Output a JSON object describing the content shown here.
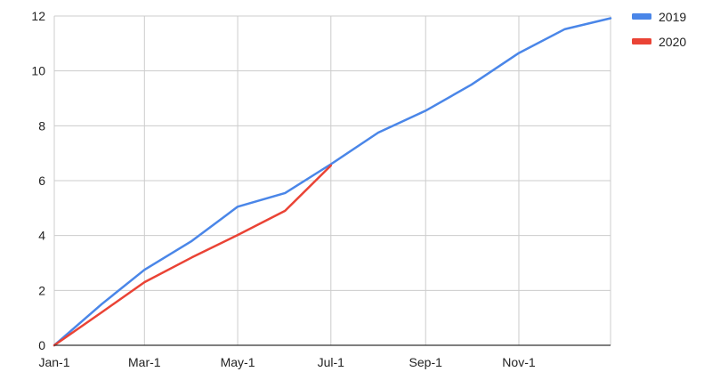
{
  "chart_data": {
    "type": "line",
    "x_ticks": [
      "Jan-1",
      "Mar-1",
      "May-1",
      "Jul-1",
      "Sep-1",
      "Nov-1"
    ],
    "y_ticks": [
      "0",
      "2",
      "4",
      "6",
      "8",
      "10",
      "12"
    ],
    "ylim": [
      0,
      12
    ],
    "xlim": [
      "Jan-1",
      "Dec-31"
    ],
    "grid": true,
    "legend_position": "top-right",
    "series": [
      {
        "name": "2019",
        "color": "#4a86e8",
        "points": [
          {
            "x": "Jan-1",
            "y": 0.0
          },
          {
            "x": "Feb-1",
            "y": 1.5
          },
          {
            "x": "Mar-1",
            "y": 2.75
          },
          {
            "x": "Apr-1",
            "y": 3.8
          },
          {
            "x": "May-1",
            "y": 5.05
          },
          {
            "x": "Jun-1",
            "y": 5.55
          },
          {
            "x": "Jul-1",
            "y": 6.6
          },
          {
            "x": "Aug-1",
            "y": 7.75
          },
          {
            "x": "Sep-1",
            "y": 8.55
          },
          {
            "x": "Oct-1",
            "y": 9.5
          },
          {
            "x": "Nov-1",
            "y": 10.65
          },
          {
            "x": "Dec-1",
            "y": 11.52
          },
          {
            "x": "Dec-31",
            "y": 11.92
          }
        ]
      },
      {
        "name": "2020",
        "color": "#ea4335",
        "points": [
          {
            "x": "Jan-1",
            "y": 0.0
          },
          {
            "x": "Feb-1",
            "y": 1.2
          },
          {
            "x": "Mar-1",
            "y": 2.3
          },
          {
            "x": "Apr-1",
            "y": 3.2
          },
          {
            "x": "May-1",
            "y": 4.02
          },
          {
            "x": "Jun-1",
            "y": 4.9
          },
          {
            "x": "Jul-1",
            "y": 6.55
          }
        ]
      }
    ]
  }
}
